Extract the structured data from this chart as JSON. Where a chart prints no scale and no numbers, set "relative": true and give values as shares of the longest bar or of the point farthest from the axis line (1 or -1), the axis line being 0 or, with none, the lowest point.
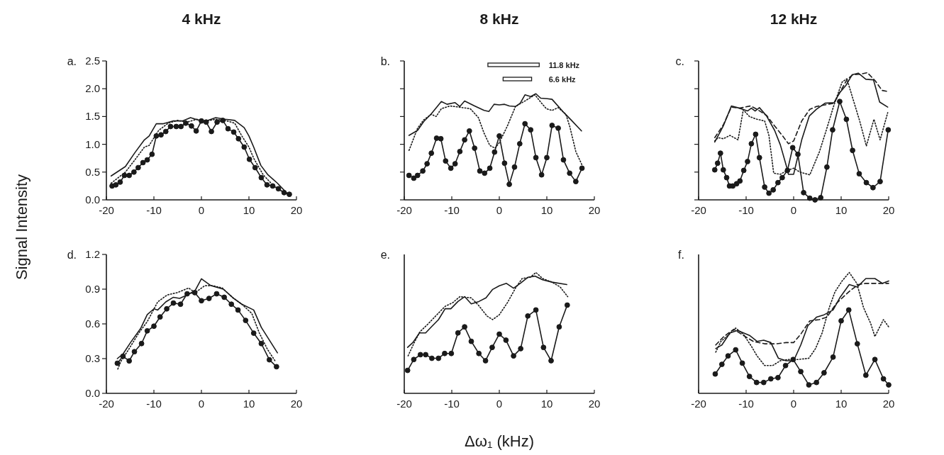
{
  "chart_data": [
    {
      "type": "line",
      "title": "4 kHz",
      "ylabel": "Signal Intensity",
      "annotations": [
        "a."
      ],
      "xlim": [
        -20,
        20
      ],
      "xticks": [
        -20,
        -10,
        0,
        10,
        20
      ],
      "ylim": [
        0,
        2.5
      ],
      "yticks": [
        {
          "value": 0,
          "label": "0.0"
        },
        {
          "value": 0.5,
          "label": "0.5"
        },
        {
          "value": 1,
          "label": "1.0"
        },
        {
          "value": 1.5,
          "label": "1.5"
        },
        {
          "value": 2,
          "label": "2.0"
        },
        {
          "value": 2.5,
          "label": "2.5"
        }
      ],
      "series": [
        {
          "color": "#1a1a1a",
          "line_style": "solid",
          "x": [
            -19,
            -16,
            -14,
            -12,
            -11,
            -9.5,
            -8,
            -6,
            -4,
            -2.3,
            0,
            1,
            3,
            5,
            7,
            9,
            10,
            11,
            12.5,
            14,
            16,
            18
          ],
          "values": [
            0.43,
            0.6,
            0.85,
            1.08,
            1.15,
            1.37,
            1.37,
            1.42,
            1.42,
            1.48,
            1.42,
            1.42,
            1.48,
            1.45,
            1.43,
            1.3,
            1.15,
            0.95,
            0.62,
            0.45,
            0.3,
            0.12
          ]
        },
        {
          "color": "#1a1a1a",
          "line_style": "dotted",
          "x": [
            -19,
            -16,
            -14,
            -12,
            -11,
            -9,
            -7,
            -5,
            -3,
            -1,
            1,
            3,
            5,
            7,
            8.5,
            10,
            11,
            13,
            15,
            17,
            18.5
          ],
          "values": [
            0.3,
            0.5,
            0.72,
            0.95,
            0.98,
            1.25,
            1.38,
            1.43,
            1.4,
            1.45,
            1.42,
            1.45,
            1.43,
            1.38,
            1.15,
            0.95,
            0.75,
            0.45,
            0.27,
            0.15,
            0.1
          ]
        },
        {
          "color": "#1a1a1a",
          "line_style": "solid",
          "marker": "circle",
          "x": [
            -18.8,
            -18,
            -17.1,
            -16.2,
            -15.2,
            -14.2,
            -13.3,
            -12.3,
            -11.4,
            -10.4,
            -9.5,
            -8.5,
            -7.5,
            -6.5,
            -5.3,
            -4.3,
            -3.3,
            -2.1,
            -1.1,
            0,
            1,
            2.1,
            3.3,
            4.5,
            5.6,
            6.8,
            7.8,
            9,
            10.1,
            11.3,
            12.6,
            13.8,
            15,
            16.2,
            17.4,
            18.5
          ],
          "values": [
            0.25,
            0.27,
            0.32,
            0.44,
            0.44,
            0.5,
            0.58,
            0.67,
            0.72,
            0.82,
            1.15,
            1.17,
            1.23,
            1.32,
            1.32,
            1.32,
            1.38,
            1.33,
            1.24,
            1.42,
            1.4,
            1.23,
            1.4,
            1.43,
            1.28,
            1.22,
            1.1,
            0.95,
            0.73,
            0.58,
            0.4,
            0.27,
            0.25,
            0.2,
            0.13,
            0.1
          ]
        }
      ]
    },
    {
      "type": "line",
      "title": "8 kHz",
      "annotations": [
        "b.",
        "11.8 kHz",
        "6.6 kHz"
      ],
      "tick_labels": "x",
      "xlim": [
        -20,
        20
      ],
      "xticks": [
        -20,
        -10,
        0,
        10,
        20
      ],
      "ylim": [
        0,
        2.5
      ],
      "yticks": [
        {
          "value": 0,
          "label": null
        },
        {
          "value": 0.5,
          "label": null
        },
        {
          "value": 1,
          "label": null
        },
        {
          "value": 1.5,
          "label": null
        },
        {
          "value": 2,
          "label": null
        },
        {
          "value": 2.5,
          "label": null
        }
      ],
      "series": [
        {
          "color": "#1a1a1a",
          "line_style": "solid",
          "x": [
            -19,
            -17.2,
            -15.9,
            -14.3,
            -12.2,
            -11,
            -9.3,
            -8.3,
            -7.3,
            -5.2,
            -3.2,
            -2.2,
            -1.1,
            0,
            1.1,
            2.1,
            3.4,
            4.4,
            5.4,
            6.6,
            7.7,
            8.7,
            10.1,
            11.1,
            13.6,
            15.2,
            17.3
          ],
          "values": [
            1.16,
            1.25,
            1.41,
            1.55,
            1.77,
            1.72,
            1.75,
            1.68,
            1.78,
            1.69,
            1.61,
            1.59,
            1.72,
            1.71,
            1.72,
            1.69,
            1.68,
            1.74,
            1.89,
            1.86,
            1.91,
            1.83,
            1.82,
            1.81,
            1.57,
            1.43,
            1.24
          ]
        },
        {
          "color": "#1a1a1a",
          "line_style": "dotted",
          "x": [
            -19,
            -17.2,
            -15.9,
            -14.3,
            -13.3,
            -12.2,
            -10.4,
            -8.5,
            -6.1,
            -4.4,
            -3.2,
            -2,
            -0.9,
            0,
            1.7,
            3.4,
            5.4,
            7.5,
            8.7,
            9.9,
            11.1,
            12.4,
            14,
            14.8,
            16.1,
            17.5
          ],
          "values": [
            0.89,
            1.29,
            1.44,
            1.54,
            1.5,
            1.64,
            1.69,
            1.67,
            1.64,
            1.48,
            1.2,
            0.98,
            0.93,
            1.03,
            1.33,
            1.68,
            1.78,
            1.89,
            1.76,
            1.64,
            1.61,
            1.66,
            1.54,
            1.33,
            0.87,
            0.61
          ]
        },
        {
          "color": "#1a1a1a",
          "line_style": "solid",
          "marker": "circle",
          "x": [
            -19,
            -18,
            -17.2,
            -16.1,
            -15.2,
            -14.3,
            -13.2,
            -12.3,
            -11.3,
            -10.2,
            -9.3,
            -8.3,
            -7.3,
            -6.3,
            -5.2,
            -4.1,
            -3.1,
            -2,
            -1,
            0,
            1.1,
            2.1,
            3.2,
            4.3,
            5.4,
            6.6,
            7.7,
            8.9,
            10,
            11.1,
            12.4,
            13.5,
            14.8,
            16.1,
            17.4
          ],
          "values": [
            0.44,
            0.39,
            0.44,
            0.52,
            0.65,
            0.84,
            1.11,
            1.1,
            0.7,
            0.57,
            0.65,
            0.87,
            1.08,
            1.24,
            0.93,
            0.52,
            0.48,
            0.57,
            0.86,
            1.15,
            0.66,
            0.28,
            0.59,
            1.01,
            1.37,
            1.26,
            0.76,
            0.45,
            0.76,
            1.34,
            1.29,
            0.72,
            0.48,
            0.33,
            0.57
          ]
        }
      ]
    },
    {
      "type": "line",
      "title": "12 kHz",
      "annotations": [
        "c."
      ],
      "tick_labels": "x",
      "xlim": [
        -20,
        20
      ],
      "xticks": [
        -20,
        -10,
        0,
        10,
        20
      ],
      "ylim": [
        0,
        2.5
      ],
      "yticks": [
        {
          "value": 0,
          "label": null
        },
        {
          "value": 0.5,
          "label": null
        },
        {
          "value": 1,
          "label": null
        },
        {
          "value": 1.5,
          "label": null
        },
        {
          "value": 2,
          "label": null
        },
        {
          "value": 2.5,
          "label": null
        }
      ],
      "series": [
        {
          "color": "#1a1a1a",
          "line_style": "solid",
          "x": [
            -16.6,
            -14.8,
            -13.1,
            -11.4,
            -9.7,
            -8.9,
            -8.1,
            -7.2,
            -5.7,
            -4,
            -2.8,
            -1.4,
            -1.1,
            0,
            1.7,
            3.3,
            4.8,
            6.6,
            8.5,
            9.7,
            11,
            12.3,
            13.6,
            15.2,
            16.8,
            18.1,
            19.8
          ],
          "values": [
            1.04,
            1.33,
            1.69,
            1.65,
            1.6,
            1.65,
            1.6,
            1.66,
            1.51,
            1.25,
            0.99,
            0.57,
            0.46,
            0.46,
            1.08,
            1.51,
            1.63,
            1.74,
            1.75,
            1.93,
            2.06,
            2.25,
            2.28,
            2.17,
            2.16,
            1.76,
            1.67
          ]
        },
        {
          "color": "#1a1a1a",
          "line_style": "dashed",
          "x": [
            -16.6,
            -14.8,
            -13.1,
            -11.4,
            -9.1,
            -7.7,
            -5.7,
            -4,
            -2.4,
            -1.1,
            0,
            1.7,
            3.4,
            4.8,
            6.6,
            8.5,
            9.7,
            11.2,
            12.4,
            13.9,
            15.5,
            17.2,
            18.6,
            19.8
          ],
          "values": [
            1.12,
            1.35,
            1.67,
            1.65,
            1.69,
            1.63,
            1.52,
            1.33,
            1.16,
            1.01,
            1.06,
            1.42,
            1.63,
            1.68,
            1.71,
            1.74,
            1.93,
            2.16,
            2.25,
            2.26,
            2.29,
            2.14,
            1.97,
            1.95
          ]
        },
        {
          "color": "#1a1a1a",
          "line_style": "dotted",
          "x": [
            -16.6,
            -15.9,
            -14.8,
            -13.4,
            -11.7,
            -10.6,
            -9.3,
            -7.7,
            -6.1,
            -5.2,
            -4.2,
            -2.8,
            -1.4,
            0,
            1.3,
            3.4,
            5.4,
            7,
            8.5,
            10.2,
            11.2,
            12.4,
            13.9,
            15.3,
            16.9,
            18.2,
            19.8
          ],
          "values": [
            1.06,
            1.12,
            1.1,
            1.16,
            1.08,
            1.62,
            1.5,
            1.45,
            1.42,
            1.16,
            0.48,
            0.46,
            0.53,
            0.57,
            0.5,
            0.45,
            0.86,
            1.29,
            1.71,
            2.12,
            2.18,
            1.84,
            1.42,
            0.97,
            1.45,
            1.08,
            1.57
          ]
        },
        {
          "color": "#1a1a1a",
          "line_style": "solid",
          "marker": "circle",
          "x": [
            -16.6,
            -16,
            -15.4,
            -14.8,
            -14.1,
            -13.5,
            -12.8,
            -12,
            -11.3,
            -10.5,
            -9.7,
            -8.9,
            -8,
            -7.2,
            -6.1,
            -5.2,
            -4.3,
            -3.3,
            -2.4,
            -1.3,
            -0.2,
            0.9,
            2.1,
            3.4,
            4.5,
            5.7,
            7,
            8.2,
            9.7,
            11.1,
            12.4,
            13.8,
            15.3,
            16.7,
            18.2,
            19.9
          ],
          "values": [
            0.54,
            0.66,
            0.84,
            0.54,
            0.4,
            0.25,
            0.25,
            0.29,
            0.34,
            0.53,
            0.69,
            1.01,
            1.18,
            0.76,
            0.23,
            0.12,
            0.18,
            0.31,
            0.4,
            0.53,
            0.94,
            0.82,
            0.13,
            0.03,
            0,
            0.04,
            0.59,
            1.26,
            1.77,
            1.45,
            0.89,
            0.47,
            0.31,
            0.22,
            0.33,
            1.26
          ]
        }
      ]
    },
    {
      "type": "line",
      "annotations": [
        "d."
      ],
      "xlim": [
        -20,
        20
      ],
      "xticks": [
        -20,
        -10,
        0,
        10,
        20
      ],
      "ylim": [
        0,
        1.2
      ],
      "yticks": [
        {
          "value": 0,
          "label": "0.0"
        },
        {
          "value": 0.3,
          "label": "0.3"
        },
        {
          "value": 0.6,
          "label": "0.6"
        },
        {
          "value": 0.9,
          "label": "0.9"
        },
        {
          "value": 1.2,
          "label": "1.2"
        }
      ],
      "series": [
        {
          "color": "#1a1a1a",
          "line_style": "solid",
          "x": [
            -17.7,
            -16.5,
            -14.9,
            -12.8,
            -11.4,
            -10,
            -9.2,
            -7.5,
            -5.9,
            -4.6,
            -3,
            -1.3,
            0,
            2,
            4.6,
            6.8,
            8.5,
            11,
            12.6,
            14.3,
            16
          ],
          "values": [
            0.3,
            0.34,
            0.44,
            0.56,
            0.68,
            0.73,
            0.72,
            0.79,
            0.83,
            0.82,
            0.85,
            0.89,
            0.99,
            0.93,
            0.9,
            0.82,
            0.77,
            0.72,
            0.57,
            0.46,
            0.35
          ]
        },
        {
          "color": "#1a1a1a",
          "line_style": "dotted",
          "x": [
            -17.6,
            -16.9,
            -15.3,
            -13.2,
            -11.4,
            -9.2,
            -7.2,
            -5.1,
            -2.7,
            -1.3,
            0.7,
            2.4,
            4.4,
            6.5,
            8.5,
            10.6,
            12.2,
            13.9,
            15.5
          ],
          "values": [
            0.21,
            0.28,
            0.38,
            0.52,
            0.62,
            0.79,
            0.85,
            0.87,
            0.91,
            0.87,
            0.93,
            0.93,
            0.91,
            0.83,
            0.77,
            0.69,
            0.52,
            0.38,
            0.28
          ]
        },
        {
          "color": "#1a1a1a",
          "line_style": "solid",
          "marker": "circle",
          "x": [
            -17.7,
            -16.5,
            -15.2,
            -14.1,
            -12.6,
            -11.4,
            -10,
            -8.7,
            -7.3,
            -5.9,
            -4.4,
            -3,
            -1.4,
            0,
            1.6,
            3.2,
            4.8,
            6.3,
            7.7,
            9.3,
            11,
            12.6,
            14.3,
            15.8
          ],
          "values": [
            0.26,
            0.32,
            0.28,
            0.36,
            0.43,
            0.54,
            0.58,
            0.66,
            0.73,
            0.78,
            0.77,
            0.86,
            0.87,
            0.8,
            0.82,
            0.86,
            0.83,
            0.77,
            0.72,
            0.63,
            0.52,
            0.43,
            0.29,
            0.23
          ]
        }
      ]
    },
    {
      "type": "line",
      "xlabel": "Δω₁ (kHz)",
      "annotations": [
        "e."
      ],
      "relative": true,
      "tick_labels": "x",
      "xlim": [
        -20,
        20
      ],
      "xticks": [
        -20,
        -10,
        0,
        10,
        20
      ],
      "series": [
        {
          "color": "#1a1a1a",
          "line_style": "solid",
          "x": [
            -19.3,
            -18.2,
            -16.8,
            -15.5,
            -14.3,
            -12.8,
            -11.4,
            -10.2,
            -8.7,
            -7.3,
            -5.9,
            -4.3,
            -2.8,
            -1.4,
            0,
            1.5,
            3,
            4.4,
            6,
            7.5,
            9.1,
            11.1,
            14.2
          ],
          "values": [
            0.38,
            0.42,
            0.5,
            0.5,
            0.55,
            0.61,
            0.7,
            0.7,
            0.76,
            0.8,
            0.74,
            0.76,
            0.79,
            0.86,
            0.89,
            0.91,
            0.87,
            0.91,
            0.96,
            0.97,
            0.94,
            0.92,
            0.9
          ]
        },
        {
          "color": "#1a1a1a",
          "line_style": "dotted",
          "x": [
            -19.2,
            -17.9,
            -16.7,
            -15.1,
            -13.4,
            -11.4,
            -9.8,
            -8.3,
            -5.9,
            -4.4,
            -2.6,
            -1.4,
            0,
            1.7,
            3.4,
            4.8,
            6.5,
            7.7,
            9.1,
            11.1,
            12.8,
            14.4
          ],
          "values": [
            0.31,
            0.42,
            0.51,
            0.57,
            0.64,
            0.72,
            0.75,
            0.8,
            0.79,
            0.73,
            0.64,
            0.61,
            0.65,
            0.75,
            0.87,
            0.95,
            0.96,
            1,
            0.95,
            0.92,
            0.88,
            0.8
          ]
        },
        {
          "color": "#1a1a1a",
          "line_style": "solid",
          "marker": "circle",
          "x": [
            -19.3,
            -18,
            -16.6,
            -15.5,
            -14.2,
            -12.8,
            -11.5,
            -10.1,
            -8.7,
            -7.3,
            -5.9,
            -4.3,
            -2.9,
            -1.5,
            0,
            1.4,
            3,
            4.5,
            6,
            7.7,
            9.3,
            10.9,
            12.6,
            14.3
          ],
          "values": [
            0.19,
            0.28,
            0.32,
            0.32,
            0.29,
            0.29,
            0.33,
            0.33,
            0.5,
            0.55,
            0.43,
            0.33,
            0.27,
            0.38,
            0.49,
            0.44,
            0.31,
            0.37,
            0.64,
            0.69,
            0.38,
            0.27,
            0.55,
            0.73
          ]
        }
      ]
    },
    {
      "type": "line",
      "annotations": [
        "f."
      ],
      "relative": true,
      "tick_labels": "x",
      "xlim": [
        -20,
        20
      ],
      "xticks": [
        -20,
        -10,
        0,
        10,
        20
      ],
      "series": [
        {
          "color": "#1a1a1a",
          "line_style": "solid",
          "x": [
            -16.4,
            -15.1,
            -13.4,
            -11.8,
            -9.3,
            -7.7,
            -6.3,
            -4.8,
            -3.2,
            -1.6,
            0,
            1.5,
            3,
            4.8,
            6.4,
            8.3,
            9.7,
            11.7,
            13.4,
            15.2,
            17.1,
            18.7,
            20
          ],
          "values": [
            0.37,
            0.4,
            0.5,
            0.52,
            0.48,
            0.43,
            0.44,
            0.42,
            0.29,
            0.27,
            0.27,
            0.4,
            0.56,
            0.63,
            0.65,
            0.69,
            0.79,
            0.9,
            0.88,
            0.95,
            0.95,
            0.91,
            0.93
          ]
        },
        {
          "color": "#1a1a1a",
          "line_style": "dashed",
          "x": [
            -16.4,
            -14.7,
            -12.6,
            -10.6,
            -8.5,
            -6.1,
            -3.6,
            -1.6,
            0,
            1.5,
            3.4,
            5.4,
            7,
            8.9,
            10.5,
            11.9,
            13.6,
            15.2,
            17.1,
            18.9,
            20
          ],
          "values": [
            0.4,
            0.47,
            0.53,
            0.48,
            0.43,
            0.41,
            0.41,
            0.42,
            0.42,
            0.49,
            0.6,
            0.61,
            0.63,
            0.74,
            0.8,
            0.85,
            0.9,
            0.91,
            0.91,
            0.91,
            0.91
          ]
        },
        {
          "color": "#1a1a1a",
          "line_style": "dotted",
          "x": [
            -16.4,
            -15.3,
            -13.8,
            -12.2,
            -10.6,
            -8.9,
            -7.7,
            -6.1,
            -4.4,
            -2.8,
            -1.1,
            0.9,
            3.2,
            4.6,
            6,
            7.5,
            8.7,
            10.2,
            11.7,
            13.3,
            14.7,
            16.2,
            17.1,
            18.9,
            20
          ],
          "values": [
            0.34,
            0.43,
            0.48,
            0.54,
            0.49,
            0.39,
            0.31,
            0.23,
            0.23,
            0.27,
            0.28,
            0.28,
            0.29,
            0.37,
            0.5,
            0.71,
            0.84,
            0.93,
            1,
            0.91,
            0.71,
            0.58,
            0.47,
            0.61,
            0.55
          ]
        },
        {
          "color": "#1a1a1a",
          "line_style": "solid",
          "marker": "circle",
          "x": [
            -16.5,
            -15.1,
            -13.8,
            -12.2,
            -10.8,
            -9.3,
            -7.8,
            -6.3,
            -4.8,
            -3.3,
            -1.7,
            -0.1,
            1.5,
            3.2,
            4.8,
            6.4,
            8.3,
            10,
            11.6,
            13.4,
            15.2,
            17.1,
            18.9,
            20
          ],
          "values": [
            0.16,
            0.24,
            0.31,
            0.36,
            0.25,
            0.14,
            0.09,
            0.09,
            0.12,
            0.13,
            0.23,
            0.28,
            0.18,
            0.07,
            0.09,
            0.17,
            0.3,
            0.6,
            0.69,
            0.41,
            0.15,
            0.28,
            0.12,
            0.07
          ]
        }
      ]
    }
  ]
}
